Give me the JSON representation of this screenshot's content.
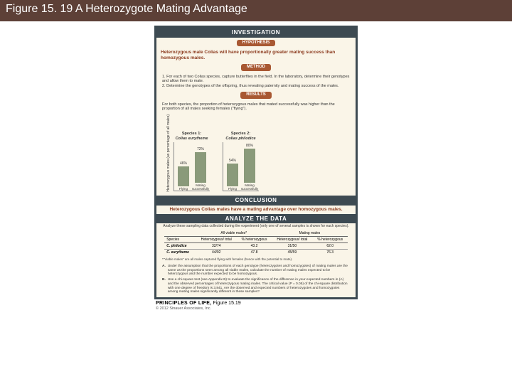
{
  "title": {
    "fig": "Figure 15. 19",
    "name": "A Heterozygote Mating Advantage"
  },
  "titlebar_bg": "#5d4037",
  "panel": {
    "bg": "#faf5e8",
    "border": "#3d4a52",
    "investigation": "INVESTIGATION",
    "hypothesis_pill": "HYPOTHESIS",
    "hypothesis": "Heterozygous male Colias will have proportionally greater mating success than homozygous males.",
    "method_pill": "METHOD",
    "method1": "1. For each of two Colias species, capture butterflies in the field. In the laboratory, determine their genotypes and allow them to mate.",
    "method2": "2. Determine the genotypes of the offspring, thus revealing paternity and mating success of the males.",
    "results_pill": "RESULTS",
    "results_text": "For both species, the proportion of heterozygous males that mated successfully was higher than the proportion of all males seeking females (\"flying\").",
    "y_axis_label": "Heterozygous males (as percentage of all males)",
    "chart": {
      "ylim": [
        0,
        100
      ],
      "yticks": [
        0,
        20,
        40,
        60,
        80,
        100
      ],
      "bar_color": "#8a9a7a",
      "groups": [
        {
          "title": "Species 1:",
          "subtitle": "Colias eurytheme",
          "bars": [
            {
              "label": "Flying",
              "value": 46,
              "text": "46%"
            },
            {
              "label": "Mating successfully",
              "value": 72,
              "text": "72%"
            }
          ]
        },
        {
          "title": "Species 2:",
          "subtitle": "Colias philodice",
          "bars": [
            {
              "label": "Flying",
              "value": 54,
              "text": "54%"
            },
            {
              "label": "Mating successfully",
              "value": 80,
              "text": "80%"
            }
          ]
        }
      ]
    },
    "conclusion_bar": "CONCLUSION",
    "conclusion": "Heterozygous Colias males have a mating advantage over homozygous males.",
    "analyze_bar": "ANALYZE THE DATA",
    "analyze_head": "Analyze these sampling data collected during the experiment (only one of several samples is shown for each species).",
    "table": {
      "group_headers": [
        "All viable males*",
        "Mating males"
      ],
      "sub_headers": [
        "Species",
        "Heterozygous/ total",
        "% heterozygous",
        "Heterozygous/ total",
        "% heterozygous"
      ],
      "rows": [
        {
          "sp": "C. philodice",
          "a": "32/74",
          "b": "43.2",
          "c": "31/50",
          "d": "62.0"
        },
        {
          "sp": "C. eurytheme",
          "a": "44/92",
          "b": "47.8",
          "c": "45/59",
          "d": "76.3"
        }
      ],
      "footnote": "*\"Viable males\" are all males captured flying with females (hence with the potential to mate)."
    },
    "qA_label": "A.",
    "qA": "Under the assumption that the proportions of each genotype (heterozygotes and homozygotes) of mating males are the same as the proportions seen among all viable males, calculate the number of mating males expected to be heterozygous and the number expected to be homozygous.",
    "qB_label": "B.",
    "qB": "Use a chi-square test (see Appendix B) to evaluate the significance of the difference in your expected numbers in (A) and the observed percentages of heterozygous mating males. The critical value (P = 0.05) of the chi-square distribution with one degree of freedom is 3.841. Are the observed and expected numbers of heterozygotes and homozygotes among mating males significantly different in these samples?"
  },
  "credit": {
    "book": "PRINCIPLES OF LIFE,",
    "fig": "Figure 15.19",
    "copy": "© 2012 Sinauer Associates, Inc."
  }
}
